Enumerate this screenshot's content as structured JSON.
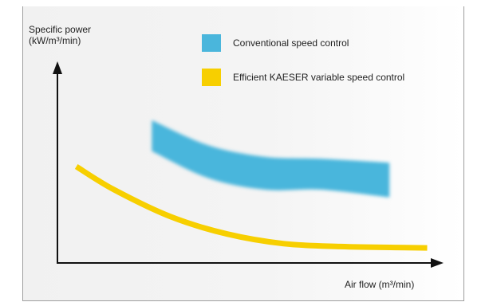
{
  "chart_data": {
    "type": "area",
    "ylabel_line1": "Specific power",
    "ylabel_line2": "(kW/m³/min)",
    "xlabel": "Air flow (m³/min)",
    "grid": false,
    "legend_placement": "top",
    "legend": [
      {
        "name": "Conventional speed control",
        "color": "#4ab6dc"
      },
      {
        "name": "Efficient KAESER variable speed control",
        "color": "#f7cf00"
      }
    ],
    "series": [
      {
        "name": "Conventional speed control",
        "kind": "band",
        "color": "#4ab6dc",
        "x": [
          0.25,
          0.4,
          0.55,
          0.7,
          0.88
        ],
        "y_low": [
          0.58,
          0.44,
          0.38,
          0.38,
          0.34
        ],
        "y_high": [
          0.74,
          0.61,
          0.55,
          0.54,
          0.52
        ]
      },
      {
        "name": "Efficient KAESER variable speed control",
        "kind": "line",
        "color": "#f7cf00",
        "x": [
          0.05,
          0.15,
          0.3,
          0.45,
          0.6,
          0.75,
          0.9,
          0.98
        ],
        "y": [
          0.5,
          0.38,
          0.24,
          0.15,
          0.1,
          0.085,
          0.08,
          0.078
        ]
      }
    ]
  }
}
